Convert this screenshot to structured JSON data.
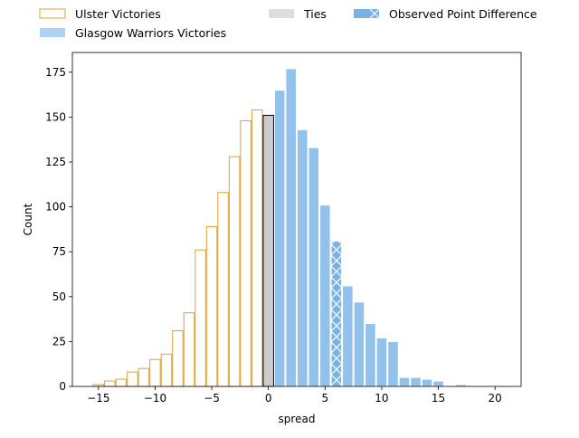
{
  "chart_data": {
    "type": "bar",
    "xlabel": "spread",
    "ylabel": "Count",
    "xlim": [
      -17.3,
      22.3
    ],
    "ylim": [
      0,
      186
    ],
    "xticks": [
      -15,
      -10,
      -5,
      0,
      5,
      10,
      15,
      20
    ],
    "yticks": [
      0,
      25,
      50,
      75,
      100,
      125,
      150,
      175
    ],
    "bin_width": 1,
    "legend": {
      "placement": "top, above plot",
      "entries": [
        {
          "label": "Ulster Victories",
          "style": "ulster"
        },
        {
          "label": "Glasgow Warriors Victories",
          "style": "glasgow"
        },
        {
          "label": "Ties",
          "style": "tie"
        },
        {
          "label": "Observed Point Difference",
          "style": "observed"
        }
      ]
    },
    "series": [
      {
        "name": "Ulster Victories",
        "x": [
          -15,
          -14,
          -13,
          -12,
          -11,
          -10,
          -9,
          -8,
          -7,
          -6,
          -5,
          -4,
          -3,
          -2,
          -1
        ],
        "values": [
          1,
          3,
          4,
          8,
          10,
          15,
          18,
          31,
          41,
          76,
          89,
          108,
          128,
          148,
          154
        ]
      },
      {
        "name": "Ties",
        "x": [
          0
        ],
        "values": [
          151
        ]
      },
      {
        "name": "Glasgow Warriors Victories",
        "x": [
          1,
          2,
          3,
          4,
          5,
          6,
          7,
          8,
          9,
          10,
          11,
          12,
          13,
          14,
          15,
          16,
          17,
          18,
          19,
          20
        ],
        "values": [
          165,
          177,
          143,
          133,
          101,
          81,
          56,
          47,
          35,
          27,
          25,
          5,
          5,
          4,
          3,
          0,
          1,
          0,
          0,
          0
        ]
      }
    ],
    "observed_point_difference": 6,
    "colors": {
      "ulster_edge": "#e0a030",
      "glasgow_fill": "#92c1eb",
      "tie_fill": "#cccccc",
      "tie_edge": "#000000",
      "observed_fill": "#7ab2e6",
      "observed_hatch": "#ffffff",
      "legend_glasgow": "#aed2f2",
      "legend_tie": "#dddddd"
    }
  }
}
